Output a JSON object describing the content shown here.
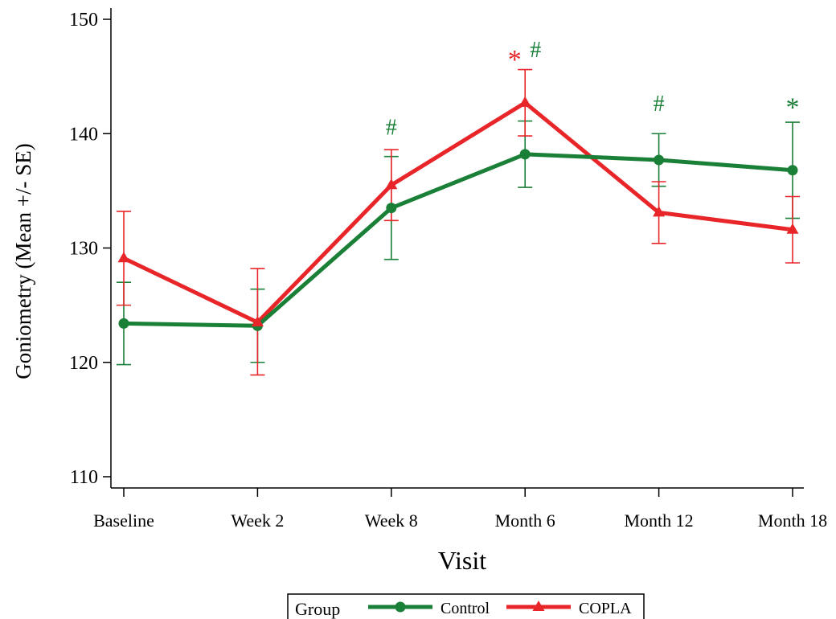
{
  "chart_data": {
    "type": "line",
    "categories": [
      "Baseline",
      "Week 2",
      "Week 8",
      "Month 6",
      "Month 12",
      "Month 18"
    ],
    "xlabel": "Visit",
    "ylabel": "Goniometry (Mean +/- SE)",
    "ylim": [
      108,
      152
    ],
    "yticks": [
      110,
      120,
      130,
      140,
      150
    ],
    "grid": false,
    "legend": {
      "title": "Group",
      "placement": "bottom-center"
    },
    "series": [
      {
        "name": "Control",
        "color": "#1a7f37",
        "marker": "circle",
        "values": [
          123.4,
          123.2,
          133.5,
          138.2,
          137.7,
          136.8
        ],
        "lower": [
          119.8,
          120.0,
          129.0,
          135.3,
          135.4,
          132.6
        ],
        "upper": [
          127.0,
          126.4,
          138.0,
          141.1,
          140.0,
          141.0
        ]
      },
      {
        "name": "COPLA",
        "color": "#e8262a",
        "marker": "triangle",
        "values": [
          129.1,
          123.5,
          135.5,
          142.7,
          133.1,
          131.6
        ],
        "lower": [
          125.0,
          118.9,
          132.4,
          139.8,
          130.4,
          128.7
        ],
        "upper": [
          133.2,
          128.2,
          138.6,
          145.6,
          135.8,
          134.5
        ]
      }
    ],
    "annotations": [
      {
        "category": "Week 8",
        "text": "#",
        "color": "#1a7f37",
        "y": 139.9
      },
      {
        "category": "Month 6",
        "text": "*",
        "color": "#e8262a",
        "y": 146.7
      },
      {
        "category": "Month 6",
        "text": "#",
        "color": "#1a7f37",
        "y": 146.7
      },
      {
        "category": "Month 12",
        "text": "#",
        "color": "#1a7f37",
        "y": 142.0
      },
      {
        "category": "Month 18",
        "text": "*",
        "color": "#1a7f37",
        "y": 142.5
      }
    ]
  }
}
